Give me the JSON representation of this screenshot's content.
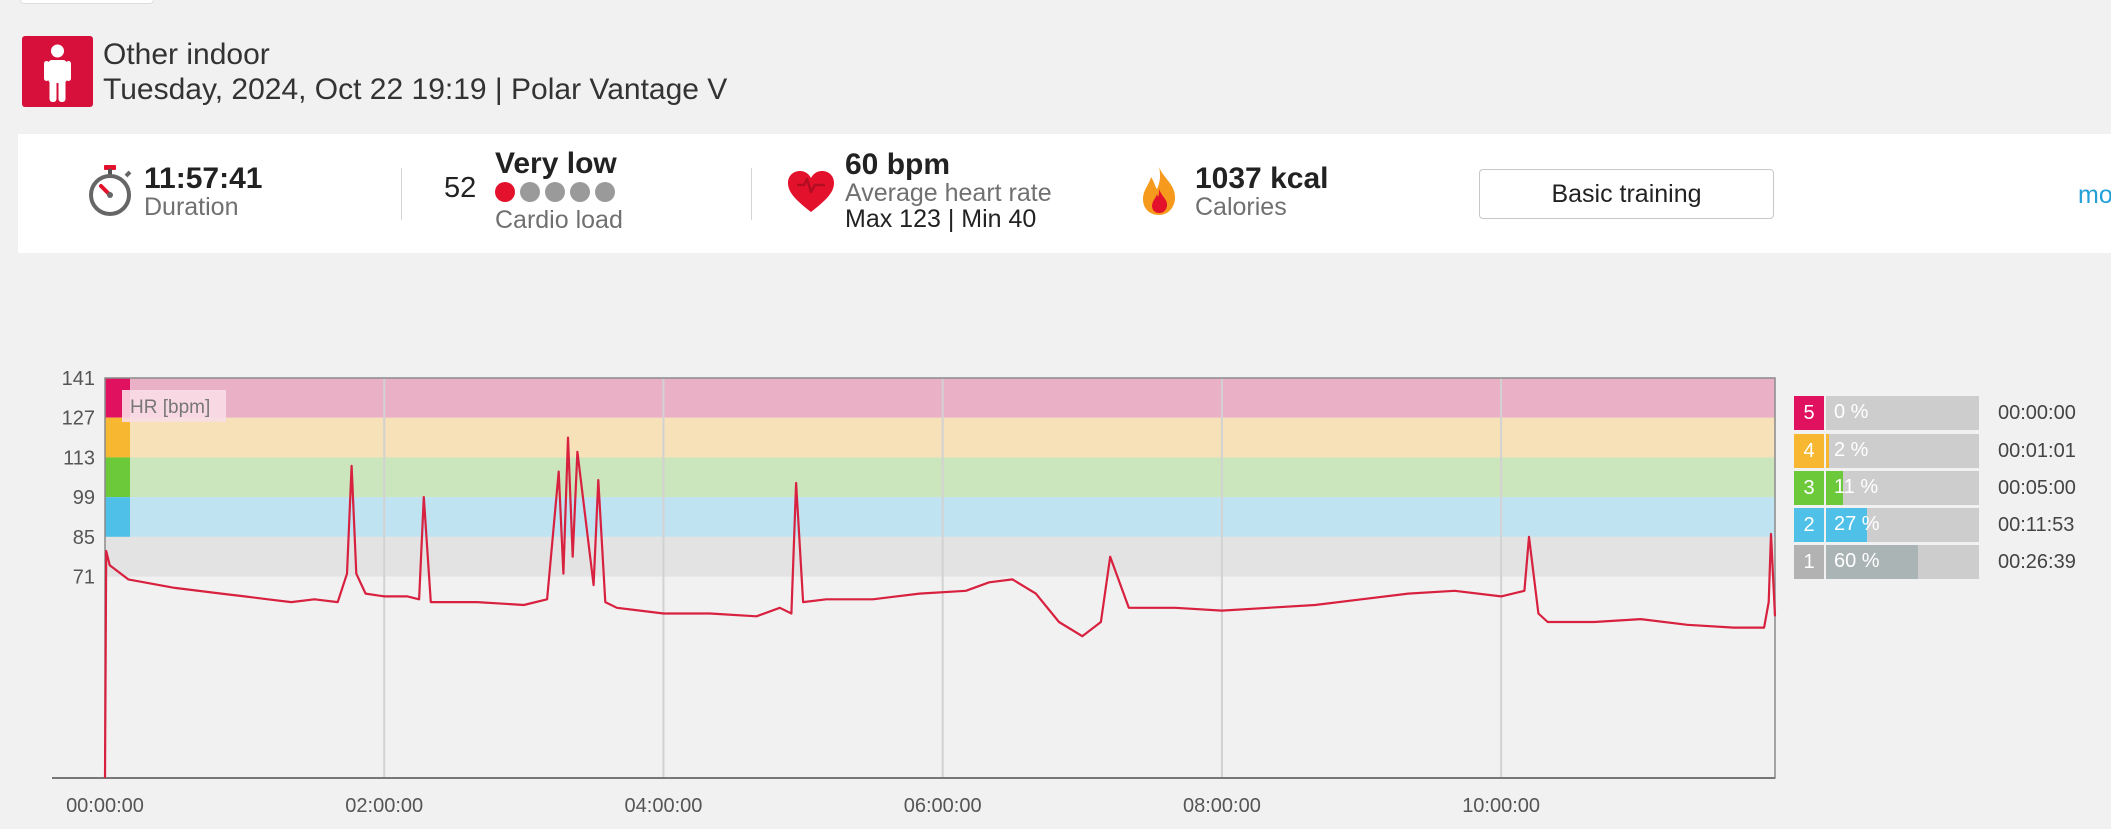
{
  "activity": {
    "sport": "Other indoor",
    "date_line": "Tuesday, 2024, Oct 22 19:19 | Polar Vantage V",
    "icon": "person-standing-icon"
  },
  "summary": {
    "duration": {
      "value": "11:57:41",
      "label": "Duration",
      "icon": "stopwatch-icon"
    },
    "cardio_load": {
      "value": "52",
      "level": "Very low",
      "label": "Cardio load",
      "dots_total": 5,
      "dots_filled": 1
    },
    "heart_rate": {
      "value": "60 bpm",
      "label": "Average heart rate",
      "max_min": "Max 123  |  Min 40",
      "icon": "heart-icon"
    },
    "calories": {
      "value": "1037 kcal",
      "label": "Calories",
      "icon": "flame-icon"
    },
    "benefit_button": "Basic training",
    "more_link": "mo"
  },
  "colors": {
    "brand_red": "#d6103a",
    "hr_line": "#d8203f",
    "zone5": "#e0115f",
    "zone4": "#f7b731",
    "zone3": "#6bc93a",
    "zone2": "#4fc1e9",
    "zone1": "#bdbdbd"
  },
  "chart_data": {
    "type": "line",
    "legend": "HR [bpm]",
    "y_ticks": [
      "141",
      "127",
      "113",
      "99",
      "85",
      "71"
    ],
    "x_ticks": [
      "00:00:00",
      "02:00:00",
      "04:00:00",
      "06:00:00",
      "08:00:00",
      "10:00:00"
    ],
    "ylim": [
      0,
      141
    ],
    "xlim_minutes": [
      0,
      717.7
    ],
    "zones": [
      {
        "zone": 5,
        "from": 127,
        "to": 141
      },
      {
        "zone": 4,
        "from": 113,
        "to": 127
      },
      {
        "zone": 3,
        "from": 99,
        "to": 113
      },
      {
        "zone": 2,
        "from": 85,
        "to": 99
      },
      {
        "zone": 1,
        "from": 71,
        "to": 85
      }
    ],
    "series": [
      {
        "x_minutes": [
          0,
          0.5,
          2,
          10,
          30,
          50,
          60,
          70,
          80,
          90,
          100,
          104,
          106,
          108,
          112,
          120,
          130,
          135,
          137,
          140,
          160,
          180,
          190,
          195,
          197,
          199,
          201,
          203,
          210,
          212,
          215,
          220,
          240,
          260,
          280,
          290,
          295,
          297,
          300,
          310,
          330,
          350,
          370,
          380,
          390,
          400,
          410,
          420,
          428,
          432,
          440,
          460,
          480,
          500,
          520,
          540,
          560,
          580,
          600,
          610,
          612,
          616,
          620,
          640,
          660,
          680,
          700,
          710,
          713,
          715,
          716,
          717.7
        ],
        "hr": [
          0,
          80,
          75,
          70,
          67,
          65,
          64,
          63,
          62,
          63,
          62,
          72,
          110,
          72,
          65,
          64,
          64,
          63,
          99,
          62,
          62,
          61,
          63,
          108,
          72,
          120,
          78,
          115,
          68,
          105,
          62,
          60,
          58,
          58,
          57,
          60,
          58,
          104,
          62,
          63,
          63,
          65,
          66,
          69,
          70,
          65,
          55,
          50,
          55,
          78,
          60,
          60,
          59,
          60,
          61,
          63,
          65,
          66,
          64,
          66,
          85,
          58,
          55,
          55,
          56,
          54,
          53,
          53,
          53,
          62,
          86,
          57
        ]
      }
    ]
  },
  "zone_summary": [
    {
      "zone": "5",
      "percent": "0 %",
      "time": "00:00:00",
      "fraction": 0.0
    },
    {
      "zone": "4",
      "percent": "2 %",
      "time": "00:01:01",
      "fraction": 0.02
    },
    {
      "zone": "3",
      "percent": "11 %",
      "time": "00:05:00",
      "fraction": 0.11
    },
    {
      "zone": "2",
      "percent": "27 %",
      "time": "00:11:53",
      "fraction": 0.27
    },
    {
      "zone": "1",
      "percent": "60 %",
      "time": "00:26:39",
      "fraction": 0.6
    }
  ]
}
